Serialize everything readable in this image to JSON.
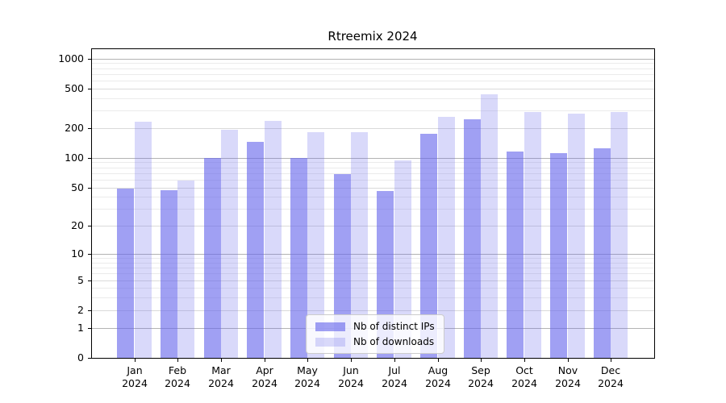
{
  "title": "Rtreemix 2024",
  "chart_data": {
    "type": "bar",
    "title": "Rtreemix 2024",
    "yscale": "log1p",
    "ylim": [
      0,
      1264
    ],
    "grid": true,
    "legend_position": "lower center",
    "categories": [
      {
        "month": "Jan",
        "year": "2024"
      },
      {
        "month": "Feb",
        "year": "2024"
      },
      {
        "month": "Mar",
        "year": "2024"
      },
      {
        "month": "Apr",
        "year": "2024"
      },
      {
        "month": "May",
        "year": "2024"
      },
      {
        "month": "Jun",
        "year": "2024"
      },
      {
        "month": "Jul",
        "year": "2024"
      },
      {
        "month": "Aug",
        "year": "2024"
      },
      {
        "month": "Sep",
        "year": "2024"
      },
      {
        "month": "Oct",
        "year": "2024"
      },
      {
        "month": "Nov",
        "year": "2024"
      },
      {
        "month": "Dec",
        "year": "2024"
      }
    ],
    "series": [
      {
        "name": "Nb of distinct IPs",
        "color": "rgba(102,102,235,0.62)",
        "values": [
          49,
          47,
          100,
          146,
          100,
          68,
          46,
          174,
          246,
          117,
          111,
          126
        ]
      },
      {
        "name": "Nb of downloads",
        "color": "rgba(102,102,235,0.25)",
        "values": [
          230,
          59,
          192,
          238,
          181,
          181,
          94,
          261,
          434,
          290,
          280,
          288
        ]
      }
    ],
    "yticks": [
      {
        "label": "1000",
        "value": 1000
      },
      {
        "label": "500",
        "value": 500
      },
      {
        "label": "200",
        "value": 200
      },
      {
        "label": "100",
        "value": 100
      },
      {
        "label": "50",
        "value": 50
      },
      {
        "label": "20",
        "value": 20
      },
      {
        "label": "10",
        "value": 10
      },
      {
        "label": "5",
        "value": 5
      },
      {
        "label": "2",
        "value": 2
      },
      {
        "label": "1",
        "value": 1
      },
      {
        "label": "0",
        "value": 0
      }
    ],
    "major_gridlines": [
      1,
      10,
      100,
      1000
    ],
    "labeled_minor_gridlines": [
      2,
      5,
      20,
      50,
      200,
      500
    ],
    "minor_gridlines": [
      3,
      4,
      6,
      7,
      8,
      9,
      30,
      40,
      60,
      70,
      80,
      90,
      300,
      400,
      600,
      700,
      800,
      900
    ]
  }
}
